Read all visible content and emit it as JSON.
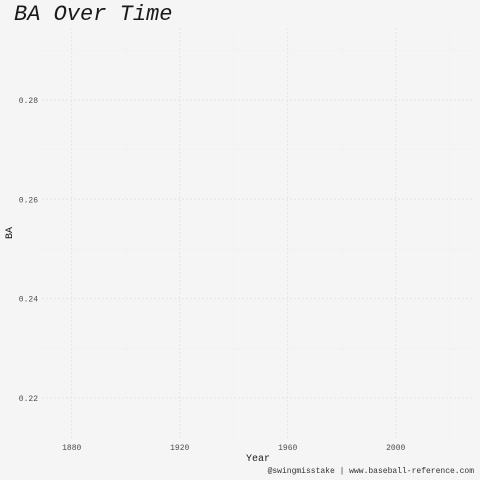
{
  "chart_data": {
    "type": "line",
    "title": "BA Over Time",
    "xlabel": "Year",
    "ylabel": "BA",
    "caption": "@swingmisstake | www.baseball-reference.com",
    "x_ticks": [
      1880,
      1920,
      1960,
      2000
    ],
    "y_ticks": [
      0.22,
      0.24,
      0.26,
      0.28
    ],
    "x_tick_labels": [
      "1880",
      "1920",
      "1960",
      "2000"
    ],
    "y_tick_labels": [
      "0.22",
      "0.24",
      "0.26",
      "0.28"
    ],
    "xlim": [
      1869,
      2029
    ],
    "ylim": [
      0.2115,
      0.2945
    ],
    "grid": true,
    "legend": "none",
    "series": [],
    "colors": {
      "background": "#f5f5f5",
      "grid": "#e3e3e3",
      "text": "#1a1a1a"
    }
  }
}
